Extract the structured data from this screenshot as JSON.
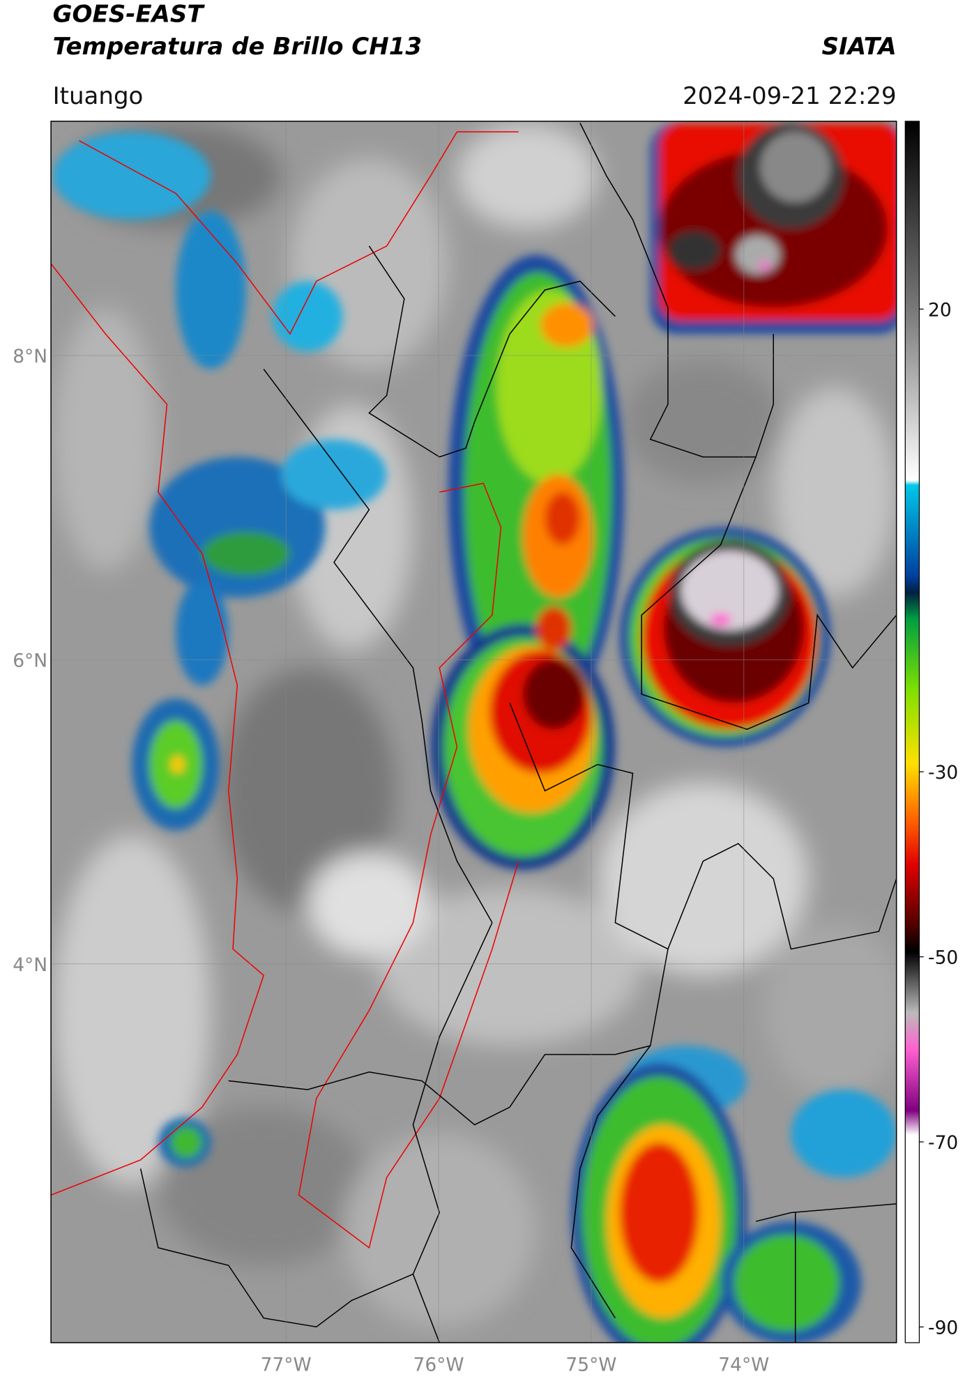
{
  "chart_data": {
    "type": "map",
    "title": "GOES-EAST",
    "subtitle": "Temperatura de Brillo CH13",
    "credit": "SIATA",
    "location": "Ituango",
    "timestamp": "2024-09-21 22:29",
    "xlim": [
      -78.54,
      -73.0
    ],
    "ylim": [
      1.51,
      9.54
    ],
    "xticks": [
      {
        "value": -77,
        "label": "77°W"
      },
      {
        "value": -76,
        "label": "76°W"
      },
      {
        "value": -75,
        "label": "75°W"
      },
      {
        "value": -74,
        "label": "74°W"
      }
    ],
    "yticks": [
      {
        "value": 4,
        "label": "4°N"
      },
      {
        "value": 6,
        "label": "6°N"
      },
      {
        "value": 8,
        "label": "8°N"
      }
    ],
    "grid": true,
    "colorbar": {
      "lim": [
        -91.7,
        40.3
      ],
      "ticks": [
        20,
        -30,
        -50,
        -70,
        -90
      ]
    }
  }
}
